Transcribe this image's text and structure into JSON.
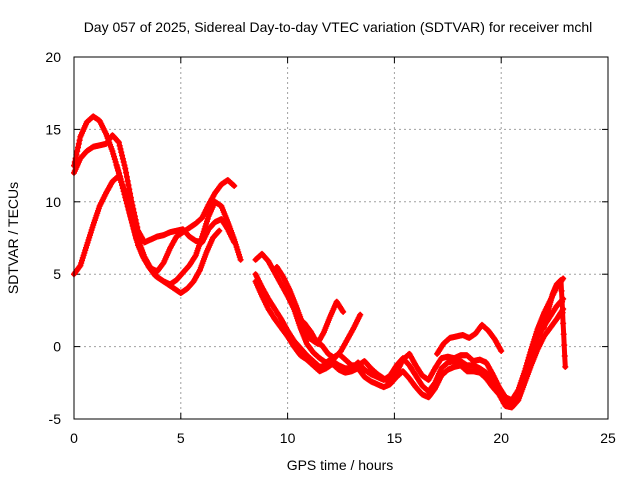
{
  "chart_data": {
    "type": "scatter",
    "title": "Day 057 of 2025, Sidereal Day-to-day VTEC variation (SDTVAR) for receiver mchl",
    "xlabel": "GPS time / hours",
    "ylabel": "SDTVAR / TECUs",
    "xlim": [
      0,
      25
    ],
    "ylim": [
      -5,
      20
    ],
    "xticks": [
      0,
      5,
      10,
      15,
      20,
      25
    ],
    "yticks": [
      -5,
      0,
      5,
      10,
      15,
      20
    ],
    "grid": true,
    "marker": "plus",
    "color": "#ff0000",
    "series": [
      {
        "name": "track-1",
        "x": [
          0.0,
          0.3,
          0.6,
          0.9,
          1.2,
          1.5,
          1.8,
          2.1,
          2.4,
          2.7,
          3.0,
          3.3,
          3.6,
          3.9,
          4.2,
          4.5,
          4.8,
          5.1,
          5.4,
          5.7,
          6.0,
          6.3,
          6.6,
          6.9,
          7.2,
          7.5
        ],
        "y": [
          12.5,
          14.5,
          15.5,
          15.9,
          15.6,
          14.7,
          13.5,
          12.0,
          10.3,
          8.7,
          7.0,
          6.0,
          5.4,
          5.2,
          5.8,
          6.8,
          7.6,
          7.9,
          8.2,
          8.5,
          8.9,
          9.8,
          10.6,
          11.2,
          11.5,
          11.1
        ]
      },
      {
        "name": "track-2",
        "x": [
          0.0,
          0.3,
          0.6,
          0.9,
          1.2,
          1.5,
          1.8,
          2.1,
          2.4,
          2.7,
          3.0,
          3.3,
          3.6,
          3.9,
          4.2,
          4.5,
          4.8,
          5.1,
          5.4,
          5.7,
          6.0,
          6.3,
          6.6,
          6.9,
          7.2,
          7.5
        ],
        "y": [
          12.0,
          13.0,
          13.5,
          13.8,
          13.9,
          14.0,
          14.6,
          14.1,
          12.3,
          10.0,
          8.0,
          7.2,
          7.4,
          7.6,
          7.7,
          7.9,
          8.0,
          8.1,
          7.6,
          7.3,
          7.2,
          8.1,
          8.6,
          8.8,
          8.1,
          7.2
        ]
      },
      {
        "name": "track-3",
        "x": [
          0.0,
          0.3,
          0.6,
          0.9,
          1.2,
          1.5,
          1.8,
          2.1,
          2.4,
          2.7,
          3.0,
          3.3,
          3.6,
          3.9,
          4.2,
          4.5,
          4.8,
          5.1,
          5.4,
          5.7,
          6.0,
          6.3,
          6.6,
          6.9,
          7.2,
          7.5,
          7.8
        ],
        "y": [
          5.0,
          5.6,
          7.0,
          8.4,
          9.7,
          10.6,
          11.4,
          11.8,
          10.6,
          9.0,
          7.4,
          6.2,
          5.4,
          4.8,
          4.5,
          4.3,
          4.6,
          5.1,
          5.6,
          6.3,
          7.6,
          9.0,
          10.0,
          9.7,
          8.6,
          7.4,
          6.0
        ]
      },
      {
        "name": "track-4",
        "x": [
          2.0,
          2.3,
          2.6,
          2.9,
          3.2,
          3.5,
          3.8,
          4.1,
          4.4,
          4.7,
          5.0,
          5.3,
          5.6,
          5.9,
          6.2,
          6.5,
          6.8
        ],
        "y": [
          12.5,
          11.0,
          9.2,
          7.5,
          6.3,
          5.5,
          4.9,
          4.6,
          4.3,
          4.0,
          3.7,
          4.0,
          4.5,
          5.3,
          6.5,
          7.5,
          8.0
        ]
      },
      {
        "name": "track-5",
        "x": [
          8.5,
          8.8,
          9.1,
          9.4,
          9.7,
          10.0,
          10.3,
          10.6,
          10.9,
          11.2,
          11.5,
          11.8,
          12.1,
          12.4,
          12.7,
          13.0,
          13.3,
          13.6,
          13.9,
          14.2,
          14.5,
          14.8,
          15.1,
          15.4,
          15.7,
          16.0,
          16.3,
          16.6,
          16.9,
          17.2,
          17.5,
          17.8,
          18.1,
          18.4,
          18.7,
          19.0,
          19.3,
          19.6,
          19.9,
          20.2,
          20.5,
          20.8,
          21.1,
          21.4,
          21.7,
          22.0,
          22.3,
          22.6,
          22.9
        ],
        "y": [
          6.0,
          6.4,
          5.9,
          5.1,
          4.3,
          3.5,
          2.6,
          1.3,
          0.2,
          -0.4,
          -0.8,
          -1.1,
          -0.8,
          -0.5,
          -0.9,
          -1.3,
          -1.3,
          -1.0,
          -1.5,
          -1.9,
          -2.2,
          -2.5,
          -1.8,
          -0.9,
          -0.5,
          -1.3,
          -2.0,
          -2.3,
          -1.5,
          -0.8,
          -0.7,
          -0.8,
          -0.6,
          -0.6,
          -1.0,
          -0.9,
          -1.1,
          -1.9,
          -2.8,
          -3.5,
          -3.7,
          -3.0,
          -1.7,
          -0.2,
          1.2,
          2.3,
          3.2,
          4.1,
          4.7
        ]
      },
      {
        "name": "track-6",
        "x": [
          8.5,
          8.8,
          9.1,
          9.4,
          9.7,
          10.0,
          10.3,
          10.6,
          10.9,
          11.2,
          11.5,
          11.8,
          12.1,
          12.4,
          12.7,
          13.0,
          13.3,
          13.6,
          13.9,
          14.2,
          14.5,
          14.8,
          15.1,
          15.4,
          15.7,
          16.0,
          16.3,
          16.6,
          16.9,
          17.2,
          17.5,
          17.8,
          18.1,
          18.4,
          18.7,
          19.0,
          19.3,
          19.6,
          19.9,
          20.2,
          20.5,
          20.8,
          21.1,
          21.4,
          21.7,
          22.0,
          22.3,
          22.6,
          22.9
        ],
        "y": [
          5.0,
          4.1,
          3.3,
          2.6,
          1.9,
          1.1,
          0.4,
          -0.1,
          -0.6,
          -1.0,
          -1.4,
          -1.3,
          -1.0,
          -1.3,
          -1.5,
          -1.5,
          -1.1,
          -1.6,
          -1.9,
          -2.1,
          -2.3,
          -2.0,
          -1.3,
          -0.8,
          -1.3,
          -2.0,
          -2.7,
          -3.1,
          -2.5,
          -1.5,
          -1.1,
          -1.0,
          -1.0,
          -1.3,
          -1.3,
          -1.5,
          -1.8,
          -2.4,
          -3.0,
          -3.8,
          -4.1,
          -3.5,
          -2.1,
          -0.6,
          0.6,
          1.4,
          2.1,
          2.8,
          3.3
        ]
      },
      {
        "name": "track-7",
        "x": [
          8.5,
          8.8,
          9.1,
          9.4,
          9.7,
          10.0,
          10.3,
          10.6,
          10.9,
          11.2,
          11.5,
          11.8,
          12.1,
          12.4,
          12.7,
          13.0,
          13.3,
          13.6,
          13.9,
          14.2,
          14.5,
          14.8,
          15.1,
          15.4,
          15.7,
          16.0,
          16.3,
          16.6,
          16.9,
          17.2,
          17.5,
          17.8,
          18.1,
          18.4,
          18.7,
          19.0,
          19.3,
          19.6,
          19.9,
          20.2,
          20.5,
          20.8,
          21.1,
          21.4,
          21.7,
          22.0,
          22.3,
          22.6,
          22.9
        ],
        "y": [
          4.5,
          3.5,
          2.6,
          1.9,
          1.3,
          0.7,
          0.0,
          -0.6,
          -0.9,
          -1.3,
          -1.7,
          -1.5,
          -1.2,
          -1.6,
          -1.8,
          -1.7,
          -1.5,
          -2.1,
          -2.4,
          -2.6,
          -2.8,
          -2.6,
          -2.1,
          -1.7,
          -2.2,
          -2.8,
          -3.3,
          -3.5,
          -2.9,
          -2.0,
          -1.6,
          -1.4,
          -1.3,
          -1.7,
          -1.7,
          -1.8,
          -2.2,
          -2.8,
          -3.3,
          -4.1,
          -4.2,
          -3.7,
          -2.5,
          -1.3,
          -0.2,
          0.7,
          1.3,
          1.9,
          2.6
        ]
      },
      {
        "name": "track-8",
        "x": [
          9.5,
          9.8,
          10.1,
          10.4,
          10.7,
          11.0,
          11.3,
          11.6,
          11.9,
          12.2,
          12.5,
          12.8,
          13.1,
          13.4
        ],
        "y": [
          5.5,
          4.8,
          3.9,
          2.8,
          1.6,
          0.6,
          0.3,
          0.1,
          -0.5,
          -0.8,
          -0.3,
          0.5,
          1.3,
          2.2
        ]
      },
      {
        "name": "track-9",
        "x": [
          10.5,
          10.8,
          11.1,
          11.4,
          11.7,
          12.0,
          12.3,
          12.6
        ],
        "y": [
          2.0,
          1.6,
          1.0,
          0.2,
          1.0,
          2.1,
          3.1,
          2.4
        ]
      },
      {
        "name": "track-10",
        "x": [
          17.0,
          17.3,
          17.6,
          17.9,
          18.2,
          18.5,
          18.8,
          19.1,
          19.4,
          19.7,
          20.0
        ],
        "y": [
          -0.5,
          0.2,
          0.6,
          0.7,
          0.8,
          0.6,
          0.9,
          1.5,
          1.1,
          0.5,
          -0.3
        ]
      },
      {
        "name": "track-11",
        "x": [
          22.0,
          22.2,
          22.4,
          22.6,
          22.8,
          23.0
        ],
        "y": [
          1.3,
          2.5,
          3.6,
          4.3,
          4.6,
          -1.4
        ]
      }
    ]
  }
}
